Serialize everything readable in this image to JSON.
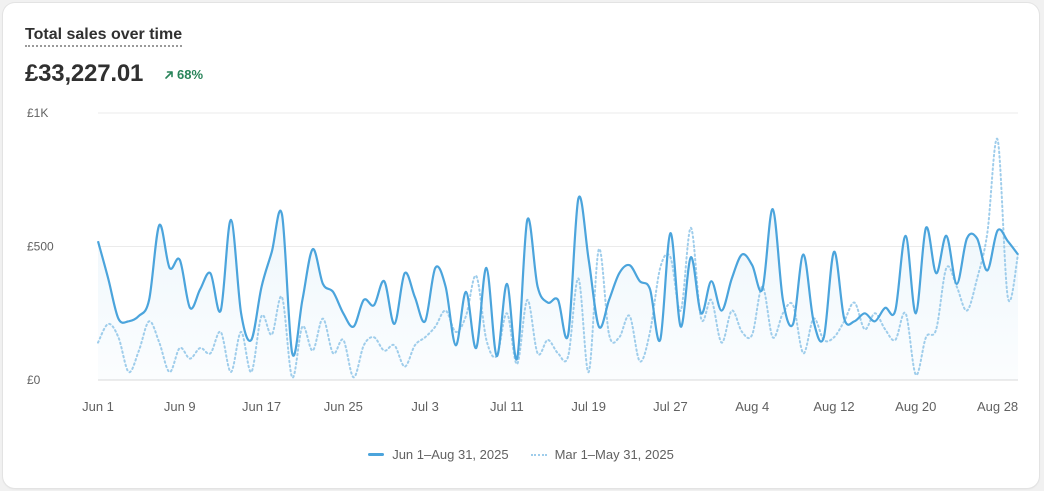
{
  "card": {
    "title": "Total sales over time",
    "total": "£33,227.01",
    "change": "68%",
    "change_icon": "arrow-up-right-icon",
    "change_color": "#29845a"
  },
  "chart_data": {
    "type": "line",
    "title": "Total sales over time",
    "ylim": [
      0,
      1000
    ],
    "y_ticks": [
      0,
      500,
      1000
    ],
    "y_tick_labels": [
      "£0",
      "£500",
      "£1K"
    ],
    "x_tick_labels": [
      "Jun 1",
      "Jun 9",
      "Jun 17",
      "Jun 25",
      "Jul 3",
      "Jul 11",
      "Jul 19",
      "Jul 27",
      "Aug 4",
      "Aug 12",
      "Aug 20",
      "Aug 28"
    ],
    "x_tick_positions": [
      0,
      8,
      16,
      24,
      32,
      40,
      48,
      56,
      64,
      72,
      80,
      88
    ],
    "grid": true,
    "legend": "bottom-center",
    "series": [
      {
        "name": "Jun 1–Aug 31, 2025",
        "style": "solid",
        "color": "#4ba4dc",
        "values": [
          520,
          380,
          230,
          220,
          240,
          300,
          580,
          420,
          450,
          270,
          340,
          400,
          260,
          600,
          250,
          150,
          350,
          480,
          620,
          100,
          300,
          490,
          360,
          330,
          250,
          200,
          300,
          280,
          370,
          210,
          400,
          310,
          220,
          420,
          350,
          130,
          330,
          120,
          420,
          90,
          360,
          80,
          600,
          350,
          290,
          300,
          170,
          680,
          450,
          200,
          300,
          400,
          430,
          370,
          340,
          150,
          550,
          200,
          460,
          250,
          370,
          260,
          380,
          470,
          430,
          340,
          640,
          300,
          210,
          470,
          220,
          160,
          480,
          230,
          220,
          250,
          220,
          270,
          260,
          540,
          250,
          570,
          400,
          540,
          360,
          530,
          530,
          410,
          560,
          520,
          470
        ]
      },
      {
        "name": "Mar 1–May 31, 2025",
        "style": "dotted",
        "color": "#9fcdeb",
        "values": [
          140,
          210,
          160,
          30,
          110,
          220,
          140,
          30,
          120,
          80,
          120,
          100,
          180,
          30,
          180,
          30,
          240,
          170,
          310,
          10,
          200,
          110,
          230,
          100,
          150,
          10,
          130,
          160,
          110,
          130,
          50,
          130,
          160,
          200,
          260,
          180,
          240,
          390,
          150,
          90,
          250,
          60,
          300,
          100,
          150,
          100,
          90,
          380,
          30,
          490,
          170,
          160,
          240,
          70,
          180,
          420,
          460,
          260,
          570,
          230,
          300,
          140,
          260,
          180,
          170,
          350,
          160,
          250,
          280,
          100,
          230,
          150,
          160,
          220,
          290,
          190,
          250,
          190,
          150,
          250,
          20,
          160,
          190,
          420,
          350,
          260,
          380,
          550,
          900,
          310,
          470
        ]
      }
    ]
  }
}
